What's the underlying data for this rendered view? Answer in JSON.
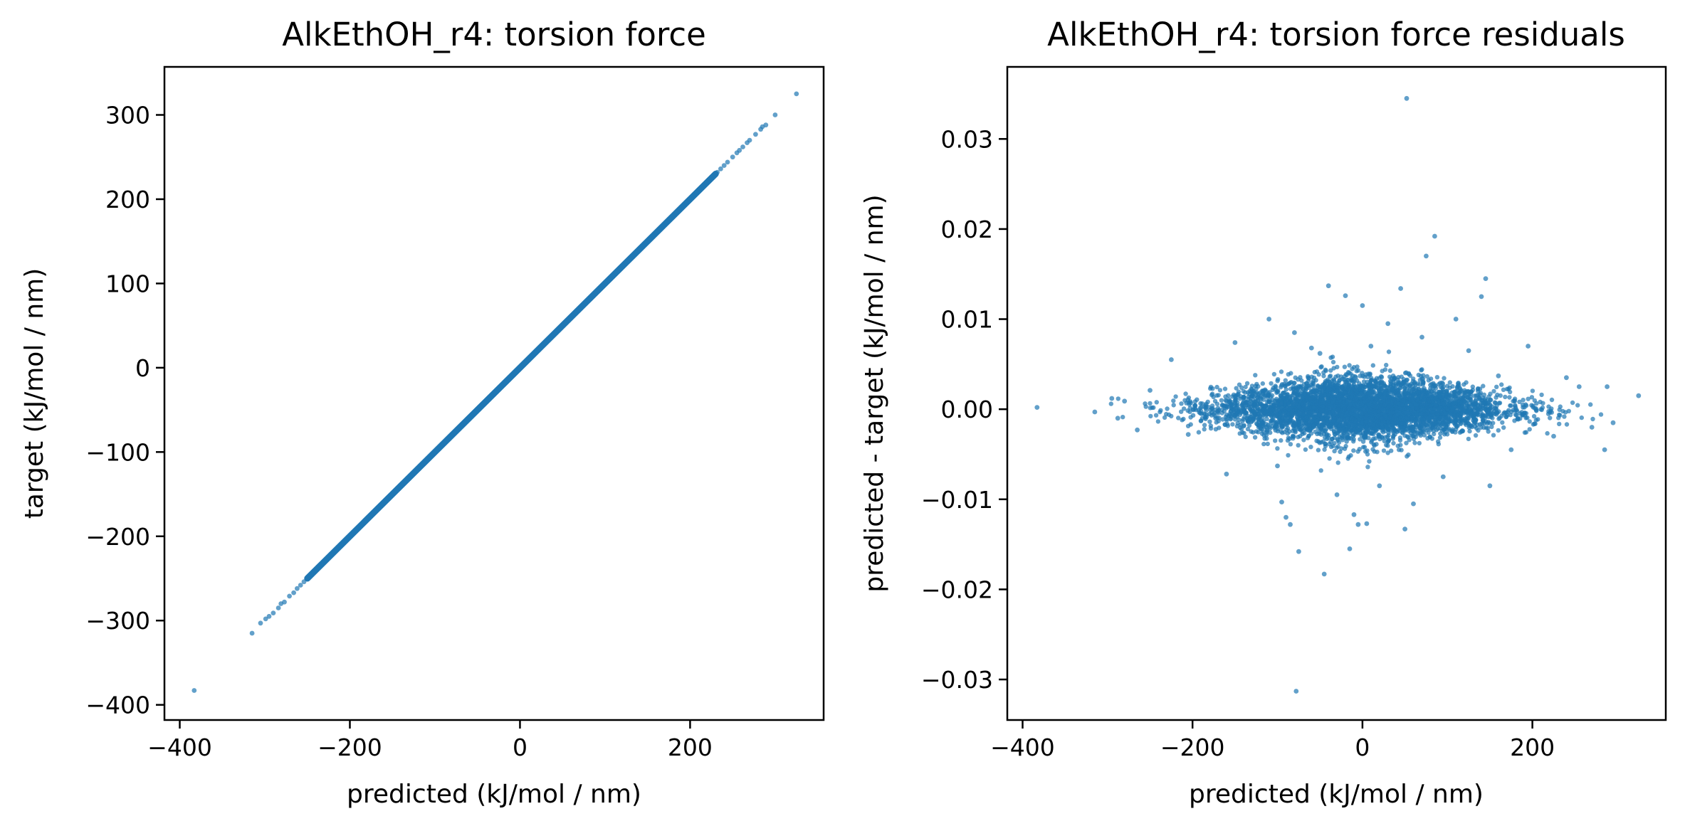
{
  "figure": {
    "background": "#ffffff",
    "marker_color": "#1f77b4"
  },
  "chart_data": [
    {
      "type": "scatter",
      "title": "AlkEthOH_r4: torsion force",
      "xlabel": "predicted (kJ/mol / nm)",
      "ylabel": "target (kJ/mol / nm)",
      "xlim": [
        -418,
        357
      ],
      "ylim": [
        -418,
        357
      ],
      "xticks": [
        -400,
        -200,
        0,
        200
      ],
      "xtick_labels": [
        "−400",
        "−200",
        "0",
        "200"
      ],
      "yticks": [
        -400,
        -300,
        -200,
        -100,
        0,
        100,
        200,
        300
      ],
      "ytick_labels": [
        "−400",
        "−300",
        "−200",
        "−100",
        "0",
        "100",
        "200",
        "300"
      ],
      "grid": false,
      "legend": "none",
      "series": [
        {
          "color": "#1f77b4",
          "dense_band": {
            "x_from": -250,
            "x_to": 230,
            "relation": "y = x"
          },
          "points": [
            [
              -383,
              -383
            ],
            [
              -315,
              -315
            ],
            [
              -305,
              -303
            ],
            [
              -299,
              -298
            ],
            [
              -295,
              -295
            ],
            [
              -290,
              -291
            ],
            [
              -284,
              -285
            ],
            [
              -281,
              -280
            ],
            [
              -277,
              -278
            ],
            [
              -271,
              -271
            ],
            [
              -266,
              -267
            ],
            [
              -262,
              -262
            ],
            [
              -258,
              -258
            ],
            [
              -254,
              -254
            ],
            [
              232,
              232
            ],
            [
              236,
              236
            ],
            [
              240,
              240
            ],
            [
              244,
              244
            ],
            [
              250,
              250
            ],
            [
              255,
              255
            ],
            [
              258,
              258
            ],
            [
              262,
              262
            ],
            [
              267,
              267
            ],
            [
              270,
              270
            ],
            [
              277,
              277
            ],
            [
              283,
              283
            ],
            [
              285,
              286
            ],
            [
              289,
              288
            ],
            [
              300,
              300
            ],
            [
              325,
              325
            ]
          ]
        }
      ]
    },
    {
      "type": "scatter",
      "title": "AlkEthOH_r4: torsion force residuals",
      "xlabel": "predicted (kJ/mol / nm)",
      "ylabel": "predicted - target (kJ/mol / nm)",
      "xlim": [
        -418,
        357
      ],
      "ylim": [
        -0.0345,
        0.038
      ],
      "xticks": [
        -400,
        -200,
        0,
        200
      ],
      "xtick_labels": [
        "−400",
        "−200",
        "0",
        "200"
      ],
      "yticks": [
        -0.03,
        -0.02,
        -0.01,
        0.0,
        0.01,
        0.02,
        0.03
      ],
      "ytick_labels": [
        "−0.03",
        "−0.02",
        "−0.01",
        "0.00",
        "0.01",
        "0.02",
        "0.03"
      ],
      "grid": false,
      "legend": "none",
      "series": [
        {
          "color": "#1f77b4",
          "dense_band": {
            "x_from": -300,
            "x_to": 290,
            "center": 0.0,
            "half_width_at_center": 0.0035,
            "half_width_at_edges": 0.0009
          },
          "points": [
            [
              -383,
              0.0002
            ],
            [
              -315,
              -0.0003
            ],
            [
              -295,
              0.0012
            ],
            [
              -288,
              -0.001
            ],
            [
              -280,
              0.0009
            ],
            [
              -265,
              -0.0023
            ],
            [
              -250,
              0.0021
            ],
            [
              -225,
              0.0055
            ],
            [
              -205,
              -0.0028
            ],
            [
              -160,
              -0.0072
            ],
            [
              -150,
              0.0074
            ],
            [
              -110,
              0.01
            ],
            [
              -100,
              -0.0063
            ],
            [
              -95,
              -0.0103
            ],
            [
              -90,
              -0.012
            ],
            [
              -85,
              -0.0128
            ],
            [
              -80,
              0.0085
            ],
            [
              -75,
              -0.0158
            ],
            [
              -60,
              0.0068
            ],
            [
              -50,
              0.0062
            ],
            [
              -45,
              -0.0183
            ],
            [
              -40,
              0.0137
            ],
            [
              -30,
              -0.0095
            ],
            [
              -20,
              0.0126
            ],
            [
              -15,
              -0.0155
            ],
            [
              -10,
              -0.0117
            ],
            [
              -5,
              -0.0128
            ],
            [
              0,
              0.0115
            ],
            [
              5,
              -0.0127
            ],
            [
              10,
              0.007
            ],
            [
              20,
              -0.0085
            ],
            [
              30,
              0.0095
            ],
            [
              45,
              0.0134
            ],
            [
              50,
              -0.0133
            ],
            [
              52,
              0.0345
            ],
            [
              60,
              -0.0105
            ],
            [
              70,
              0.008
            ],
            [
              75,
              0.017
            ],
            [
              85,
              0.0192
            ],
            [
              95,
              -0.0075
            ],
            [
              110,
              0.01
            ],
            [
              125,
              0.0065
            ],
            [
              140,
              0.0125
            ],
            [
              145,
              0.0145
            ],
            [
              150,
              -0.0085
            ],
            [
              160,
              0.0037
            ],
            [
              175,
              -0.0045
            ],
            [
              195,
              0.007
            ],
            [
              225,
              -0.003
            ],
            [
              240,
              0.0035
            ],
            [
              255,
              0.0025
            ],
            [
              270,
              -0.002
            ],
            [
              285,
              -0.0045
            ],
            [
              288,
              0.0025
            ],
            [
              295,
              -0.0015
            ],
            [
              325,
              0.0015
            ],
            [
              -78,
              -0.0313
            ]
          ]
        }
      ]
    }
  ]
}
